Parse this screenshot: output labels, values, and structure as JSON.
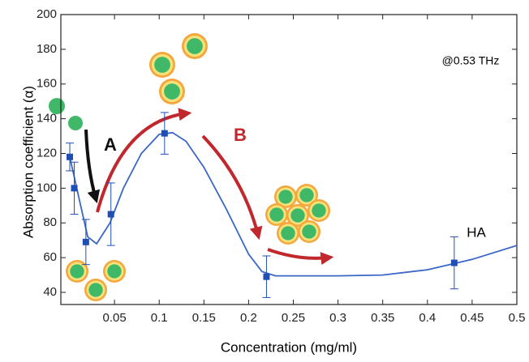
{
  "chart_data": {
    "type": "scatter",
    "xlabel": "Concentration (mg/ml)",
    "ylabel": "Absorption coefficient (α)",
    "annotations": [
      "@0.53 THz",
      "A",
      "B",
      "HA"
    ],
    "xlim": [
      -0.01,
      0.5
    ],
    "ylim": [
      33,
      200
    ],
    "xticks": [
      0.05,
      0.1,
      0.15,
      0.2,
      0.25,
      0.3,
      0.35,
      0.4,
      0.45,
      0.5
    ],
    "yticks": [
      40,
      60,
      80,
      100,
      120,
      140,
      160,
      180,
      200
    ],
    "series": [
      {
        "color": "#1f4fb4",
        "x": [
          0.0,
          0.005,
          0.018,
          0.046,
          0.106,
          0.22,
          0.43
        ],
        "values": [
          118,
          100,
          69,
          85,
          131.6,
          49,
          57
        ],
        "errors": [
          8,
          15,
          13,
          18,
          12,
          12,
          15
        ]
      },
      {
        "color": "#3a66c8",
        "x": [
          0.0,
          0.01,
          0.02,
          0.03,
          0.045,
          0.06,
          0.08,
          0.1,
          0.115,
          0.13,
          0.15,
          0.175,
          0.2,
          0.215,
          0.23,
          0.3,
          0.35,
          0.4,
          0.45,
          0.5
        ],
        "values": [
          118,
          95,
          72,
          68,
          80,
          100,
          120,
          131,
          132,
          127,
          112,
          88,
          62,
          52,
          49.5,
          49.5,
          50,
          53,
          59,
          67
        ]
      }
    ]
  }
}
